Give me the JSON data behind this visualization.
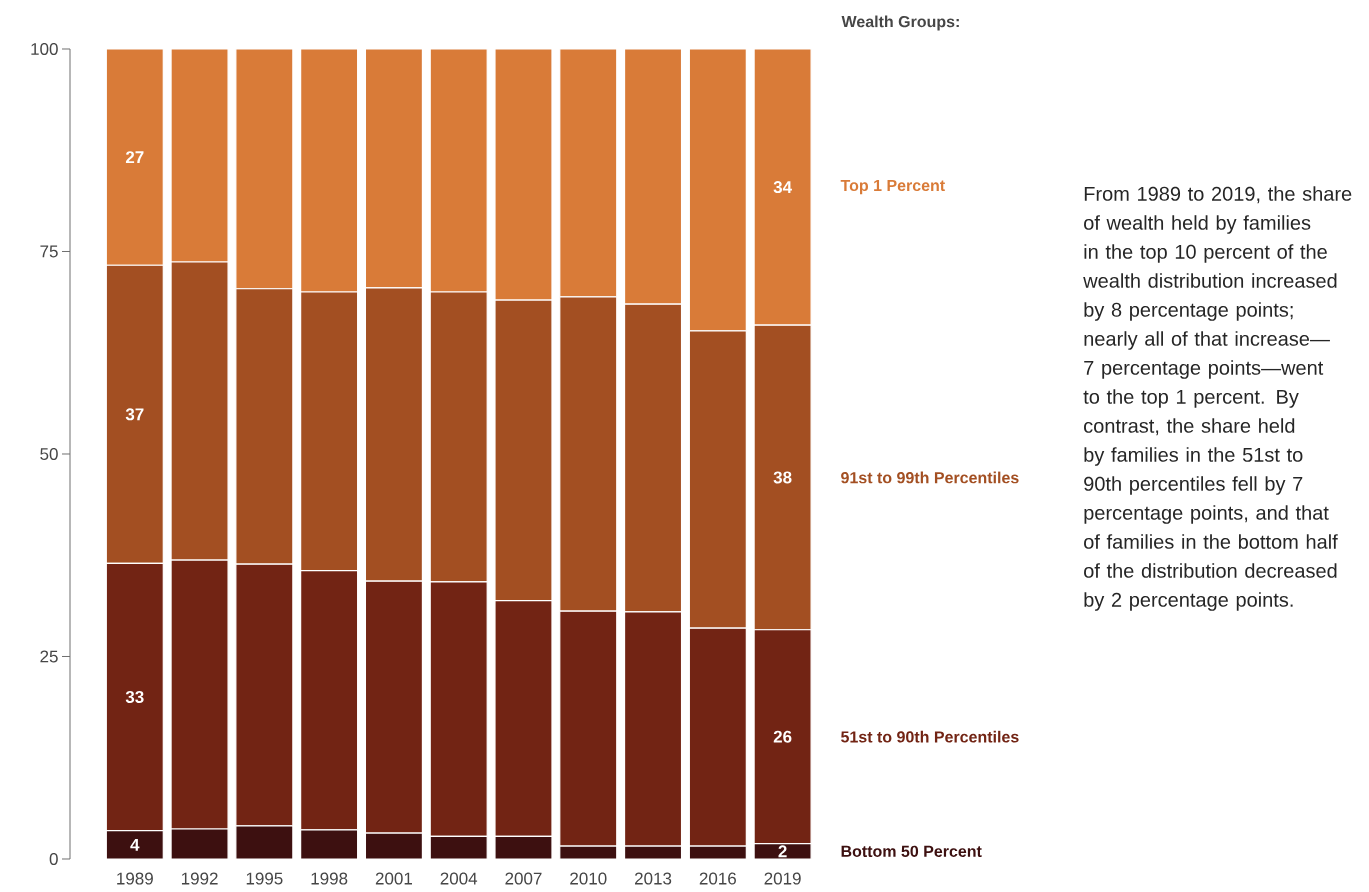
{
  "chart_data": {
    "type": "bar",
    "stacked": true,
    "legend": "right",
    "legend_title": "Wealth Groups:",
    "categories": [
      "1989",
      "1992",
      "1995",
      "1998",
      "2001",
      "2004",
      "2007",
      "2010",
      "2013",
      "2016",
      "2019"
    ],
    "series": [
      {
        "name": "Bottom 50 Percent",
        "color": "#3d1010",
        "values": [
          3.5,
          3.7,
          4.1,
          3.6,
          3.2,
          2.8,
          2.8,
          1.6,
          1.6,
          1.6,
          1.9
        ],
        "value_labels": [
          "4",
          null,
          null,
          null,
          null,
          null,
          null,
          null,
          null,
          null,
          "2"
        ]
      },
      {
        "name": "51st to 90th Percentiles",
        "color": "#722414",
        "values": [
          33.0,
          33.2,
          32.3,
          32.0,
          31.1,
          31.4,
          29.1,
          29.0,
          28.9,
          26.9,
          26.4
        ],
        "value_labels": [
          "33",
          null,
          null,
          null,
          null,
          null,
          null,
          null,
          null,
          null,
          "26"
        ]
      },
      {
        "name": "91st to 99th Percentiles",
        "color": "#a34f22",
        "values": [
          36.8,
          36.8,
          34.0,
          34.4,
          36.2,
          35.8,
          37.1,
          38.8,
          38.0,
          36.7,
          37.6
        ],
        "value_labels": [
          "37",
          null,
          null,
          null,
          null,
          null,
          null,
          null,
          null,
          null,
          "38"
        ]
      },
      {
        "name": "Top 1 Percent",
        "color": "#d97b38",
        "values": [
          26.7,
          26.3,
          29.6,
          30.0,
          29.5,
          30.0,
          31.0,
          30.6,
          31.5,
          34.8,
          34.1
        ],
        "value_labels": [
          "27",
          null,
          null,
          null,
          null,
          null,
          null,
          null,
          null,
          null,
          "34"
        ]
      }
    ],
    "ylim": [
      0,
      100
    ],
    "yticks": [
      0,
      25,
      50,
      75,
      100
    ],
    "annotations": [
      "From 1989 to 2019, the share of wealth held by families in the top 10 percent of the wealth distribution increased by 8 percentage points; nearly all of that increase—7 percentage points—went to the top 1 percent. By contrast, the share held by families in the 51st to 90th percentiles fell by 7 percentage points, and that of families in the bottom half of the distribution decreased by 2 percentage points."
    ]
  }
}
